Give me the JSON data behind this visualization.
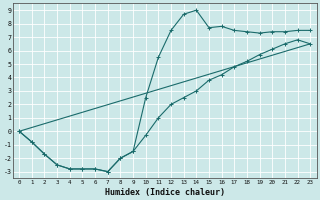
{
  "xlabel": "Humidex (Indice chaleur)",
  "background_color": "#cce8e8",
  "grid_color": "#b0d4d4",
  "line_color": "#1a6b6b",
  "xlim": [
    -0.5,
    23.5
  ],
  "ylim": [
    -3.5,
    9.5
  ],
  "xticks": [
    0,
    1,
    2,
    3,
    4,
    5,
    6,
    7,
    8,
    9,
    10,
    11,
    12,
    13,
    14,
    15,
    16,
    17,
    18,
    19,
    20,
    21,
    22,
    23
  ],
  "yticks": [
    -3,
    -2,
    -1,
    0,
    1,
    2,
    3,
    4,
    5,
    6,
    7,
    8,
    9
  ],
  "line1_x": [
    0,
    1,
    2,
    3,
    4,
    5,
    6,
    7,
    8,
    9,
    10,
    11,
    12,
    13,
    14,
    15,
    16,
    17,
    18,
    19,
    20,
    21,
    22,
    23
  ],
  "line1_y": [
    0.0,
    -0.8,
    -1.7,
    -2.5,
    -2.8,
    -2.8,
    -2.8,
    -3.0,
    -2.0,
    -1.5,
    2.5,
    5.5,
    7.5,
    8.7,
    9.0,
    7.7,
    7.8,
    7.5,
    7.4,
    7.3,
    7.4,
    7.4,
    7.5,
    7.5
  ],
  "line2_x": [
    0,
    1,
    2,
    3,
    4,
    5,
    6,
    7,
    8,
    9,
    10,
    11,
    12,
    13,
    14,
    15,
    16,
    17,
    18,
    19,
    20,
    21,
    22,
    23
  ],
  "line2_y": [
    0.0,
    -0.8,
    -1.7,
    -2.5,
    -2.8,
    -2.8,
    -2.8,
    -3.0,
    -2.0,
    -1.5,
    -0.3,
    1.0,
    2.0,
    2.5,
    3.0,
    3.8,
    4.2,
    4.8,
    5.2,
    5.7,
    6.1,
    6.5,
    6.8,
    6.5
  ],
  "line3_x": [
    0,
    23
  ],
  "line3_y": [
    0.0,
    6.5
  ]
}
